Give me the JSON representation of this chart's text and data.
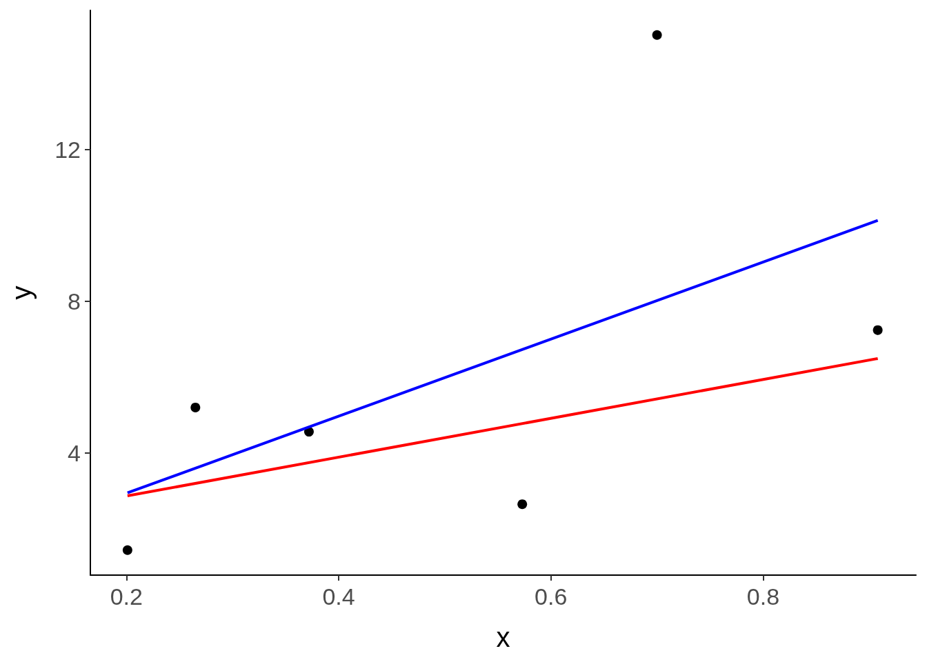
{
  "chart_data": {
    "type": "scatter",
    "xlabel": "x",
    "ylabel": "y",
    "xlim": [
      0.166,
      0.944
    ],
    "ylim": [
      0.78,
      15.67
    ],
    "xticks": [
      0.2,
      0.4,
      0.6,
      0.8
    ],
    "yticks": [
      4,
      8,
      12
    ],
    "grid": false,
    "marker": "circle",
    "series": [
      {
        "color": "#000000",
        "x": [
          0.201,
          0.265,
          0.372,
          0.573,
          0.7,
          0.908
        ],
        "values": [
          1.44,
          5.2,
          4.56,
          2.65,
          15.02,
          7.24
        ]
      },
      {
        "type": "line",
        "color": "#0000ff",
        "marker": "none",
        "line_style": "solid",
        "x": [
          0.201,
          0.908
        ],
        "values": [
          2.95,
          10.13
        ]
      },
      {
        "type": "line",
        "color": "#ff0000",
        "marker": "none",
        "line_style": "solid",
        "x": [
          0.201,
          0.908
        ],
        "values": [
          2.87,
          6.49
        ]
      }
    ]
  }
}
